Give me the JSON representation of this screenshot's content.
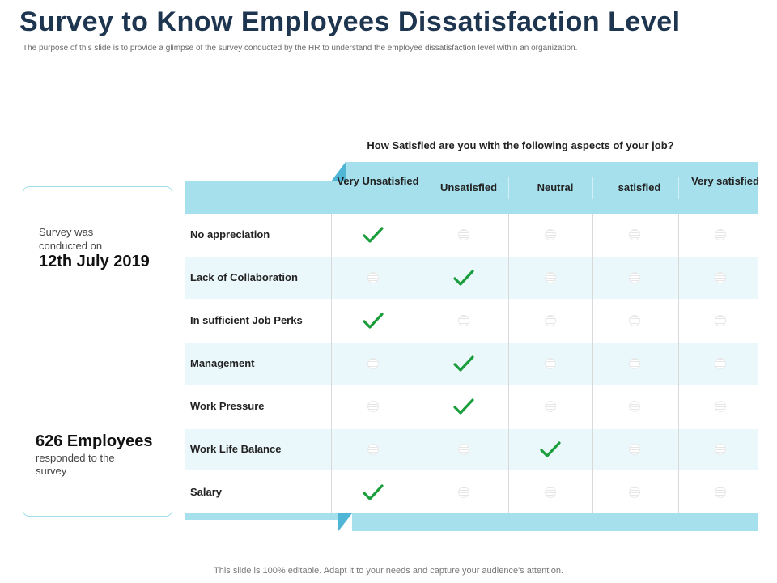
{
  "slide": {
    "title": "Survey to Know Employees Dissatisfaction Level",
    "subtitle": "The purpose of this slide is to provide a glimpse of the survey conducted by the HR to understand the employee dissatisfaction level within an organization.",
    "footer_note": "This slide is 100% editable. Adapt it to your needs and capture your audience's attention."
  },
  "info": {
    "conducted_label": "Survey was conducted on",
    "date": "12th July 2019",
    "employees_count": "626 Employees",
    "responded_label": "responded to the survey"
  },
  "survey": {
    "question": "How Satisfied are you with the following aspects of your job?",
    "columns": [
      "Very Unsatisfied",
      "Unsatisfied",
      "Neutral",
      "satisfied",
      "Very satisfied"
    ],
    "rows": [
      {
        "label": "No appreciation",
        "selected": 0
      },
      {
        "label": "Lack of Collaboration",
        "selected": 1
      },
      {
        "label": "In sufficient Job Perks",
        "selected": 0
      },
      {
        "label": "Management",
        "selected": 1
      },
      {
        "label": "Work Pressure",
        "selected": 1
      },
      {
        "label": "Work Life Balance",
        "selected": 2
      },
      {
        "label": "Salary",
        "selected": 0
      }
    ]
  },
  "colors": {
    "check": "#1a9e3c",
    "accent": "#a6e0ec",
    "accent_dark": "#4fb6d6",
    "title": "#1e3550"
  }
}
